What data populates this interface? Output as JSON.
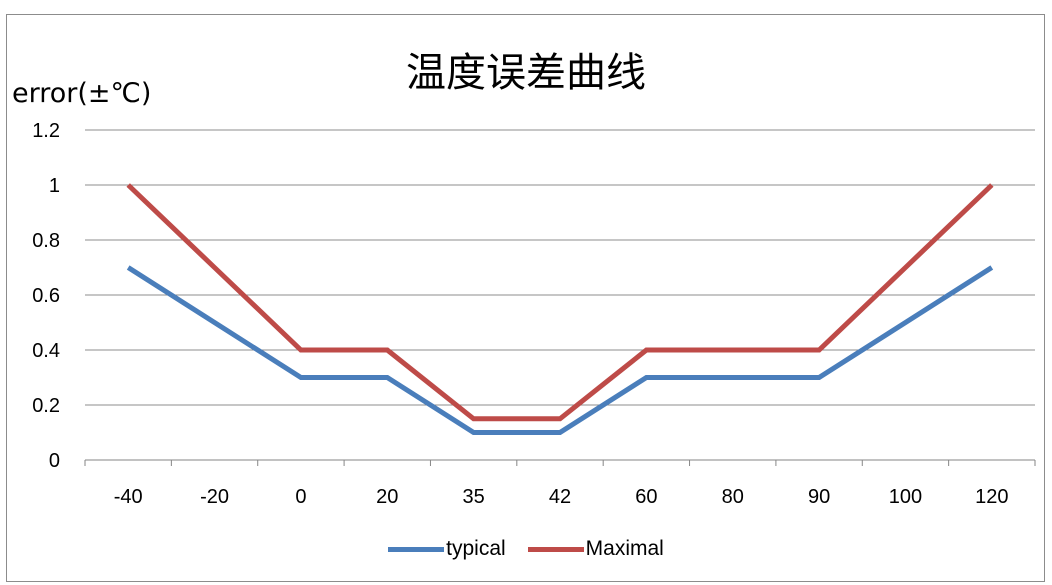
{
  "chart_data": {
    "type": "line",
    "title": "温度误差曲线",
    "ylabel": "error(±℃)",
    "xlabel": "",
    "categories": [
      "-40",
      "-20",
      "0",
      "20",
      "35",
      "42",
      "60",
      "80",
      "90",
      "100",
      "120"
    ],
    "y_ticks": [
      "0",
      "0.2",
      "0.4",
      "0.6",
      "0.8",
      "1",
      "1.2"
    ],
    "ylim": [
      0,
      1.2
    ],
    "grid": true,
    "legend_position": "bottom",
    "series": [
      {
        "name": "typical",
        "color": "#4a7ebb",
        "values": [
          0.7,
          0.5,
          0.3,
          0.3,
          0.1,
          0.1,
          0.3,
          0.3,
          0.3,
          0.5,
          0.7
        ]
      },
      {
        "name": "Maximal",
        "color": "#be4b48",
        "values": [
          1.0,
          0.7,
          0.4,
          0.4,
          0.15,
          0.15,
          0.4,
          0.4,
          0.4,
          0.7,
          1.0
        ]
      }
    ]
  }
}
